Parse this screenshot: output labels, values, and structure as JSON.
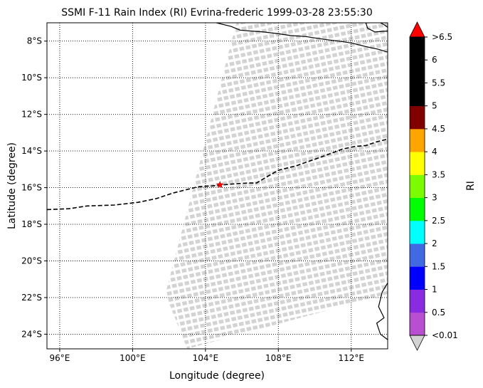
{
  "chart_data": {
    "type": "map",
    "title": "SSMI F-11 Rain Index (RI) Evrina-frederic 1999-03-28 23:55:30",
    "xlabel": "Longitude (degree)",
    "ylabel": "Latitude (degree)",
    "xlim": [
      95.3,
      114.0
    ],
    "ylim": [
      -24.8,
      -7.0
    ],
    "xticks": [
      {
        "value": 96,
        "label": "96°E"
      },
      {
        "value": 100,
        "label": "100°E"
      },
      {
        "value": 104,
        "label": "104°E"
      },
      {
        "value": 108,
        "label": "108°E"
      },
      {
        "value": 112,
        "label": "112°E"
      }
    ],
    "yticks": [
      {
        "value": -8,
        "label": "8°S"
      },
      {
        "value": -10,
        "label": "10°S"
      },
      {
        "value": -12,
        "label": "12°S"
      },
      {
        "value": -14,
        "label": "14°S"
      },
      {
        "value": -16,
        "label": "16°S"
      },
      {
        "value": -18,
        "label": "18°S"
      },
      {
        "value": -20,
        "label": "20°S"
      },
      {
        "value": -22,
        "label": "22°S"
      },
      {
        "value": -24,
        "label": "24°S"
      }
    ],
    "grid": true,
    "swath": {
      "color": "#d3d3d3",
      "corners": [
        [
          105.7,
          -7.0
        ],
        [
          114.0,
          -7.0
        ],
        [
          114.0,
          -21.8
        ],
        [
          103.0,
          -24.8
        ],
        [
          101.8,
          -21.8
        ]
      ],
      "rain_index_all": "<0.01"
    },
    "track": {
      "style": "dashed",
      "color": "#000000",
      "points": [
        [
          95.3,
          -17.2
        ],
        [
          96.5,
          -17.15
        ],
        [
          97.5,
          -17.0
        ],
        [
          99.0,
          -16.95
        ],
        [
          100.3,
          -16.8
        ],
        [
          101.3,
          -16.6
        ],
        [
          102.2,
          -16.3
        ],
        [
          103.0,
          -16.1
        ],
        [
          103.6,
          -15.95
        ],
        [
          104.4,
          -15.9
        ],
        [
          105.5,
          -15.8
        ],
        [
          106.3,
          -15.75
        ],
        [
          106.8,
          -15.75
        ],
        [
          107.3,
          -15.45
        ],
        [
          108.0,
          -15.05
        ],
        [
          109.0,
          -14.8
        ],
        [
          110.0,
          -14.45
        ],
        [
          110.7,
          -14.2
        ],
        [
          111.5,
          -13.9
        ],
        [
          112.2,
          -13.75
        ],
        [
          112.8,
          -13.7
        ],
        [
          113.4,
          -13.5
        ],
        [
          114.0,
          -13.35
        ]
      ]
    },
    "storm_center": {
      "lon": 104.8,
      "lat": -15.85,
      "marker": "star",
      "color": "#ff0000"
    },
    "coastlines": [
      [
        [
          104.6,
          -7.0
        ],
        [
          105.4,
          -7.2
        ],
        [
          105.9,
          -7.4
        ],
        [
          106.5,
          -7.45
        ],
        [
          107.2,
          -7.5
        ],
        [
          108.0,
          -7.6
        ],
        [
          108.7,
          -7.7
        ],
        [
          109.5,
          -7.75
        ],
        [
          110.5,
          -7.9
        ],
        [
          111.3,
          -8.0
        ],
        [
          112.0,
          -8.1
        ],
        [
          112.8,
          -8.3
        ],
        [
          113.5,
          -8.45
        ],
        [
          114.0,
          -8.6
        ]
      ],
      [
        [
          112.8,
          -7.0
        ],
        [
          112.9,
          -7.3
        ],
        [
          113.3,
          -7.5
        ],
        [
          114.0,
          -7.45
        ]
      ],
      [
        [
          113.6,
          -7.0
        ],
        [
          113.8,
          -7.1
        ],
        [
          114.0,
          -7.25
        ]
      ],
      [
        [
          114.0,
          -21.2
        ],
        [
          113.7,
          -21.7
        ],
        [
          113.5,
          -22.5
        ],
        [
          113.8,
          -23.1
        ],
        [
          113.4,
          -23.4
        ],
        [
          113.6,
          -24.0
        ],
        [
          114.0,
          -24.3
        ]
      ]
    ],
    "colorbar": {
      "label": "RI",
      "ticks": [
        "<0.01",
        "0.5",
        "1",
        "1.5",
        "2",
        "2.5",
        "3",
        "3.5",
        "4",
        "4.5",
        "5",
        "5.5",
        "6",
        ">6.5"
      ],
      "colors": [
        "#b84fd0",
        "#8a2be2",
        "#0000ff",
        "#4169e1",
        "#00ffff",
        "#00ff00",
        "#7cfc00",
        "#ffff00",
        "#ffa500",
        "#800000",
        "#000000",
        "#000000",
        "#000000"
      ],
      "under_color": "#d3d3d3",
      "over_color": "#ff0000"
    }
  }
}
